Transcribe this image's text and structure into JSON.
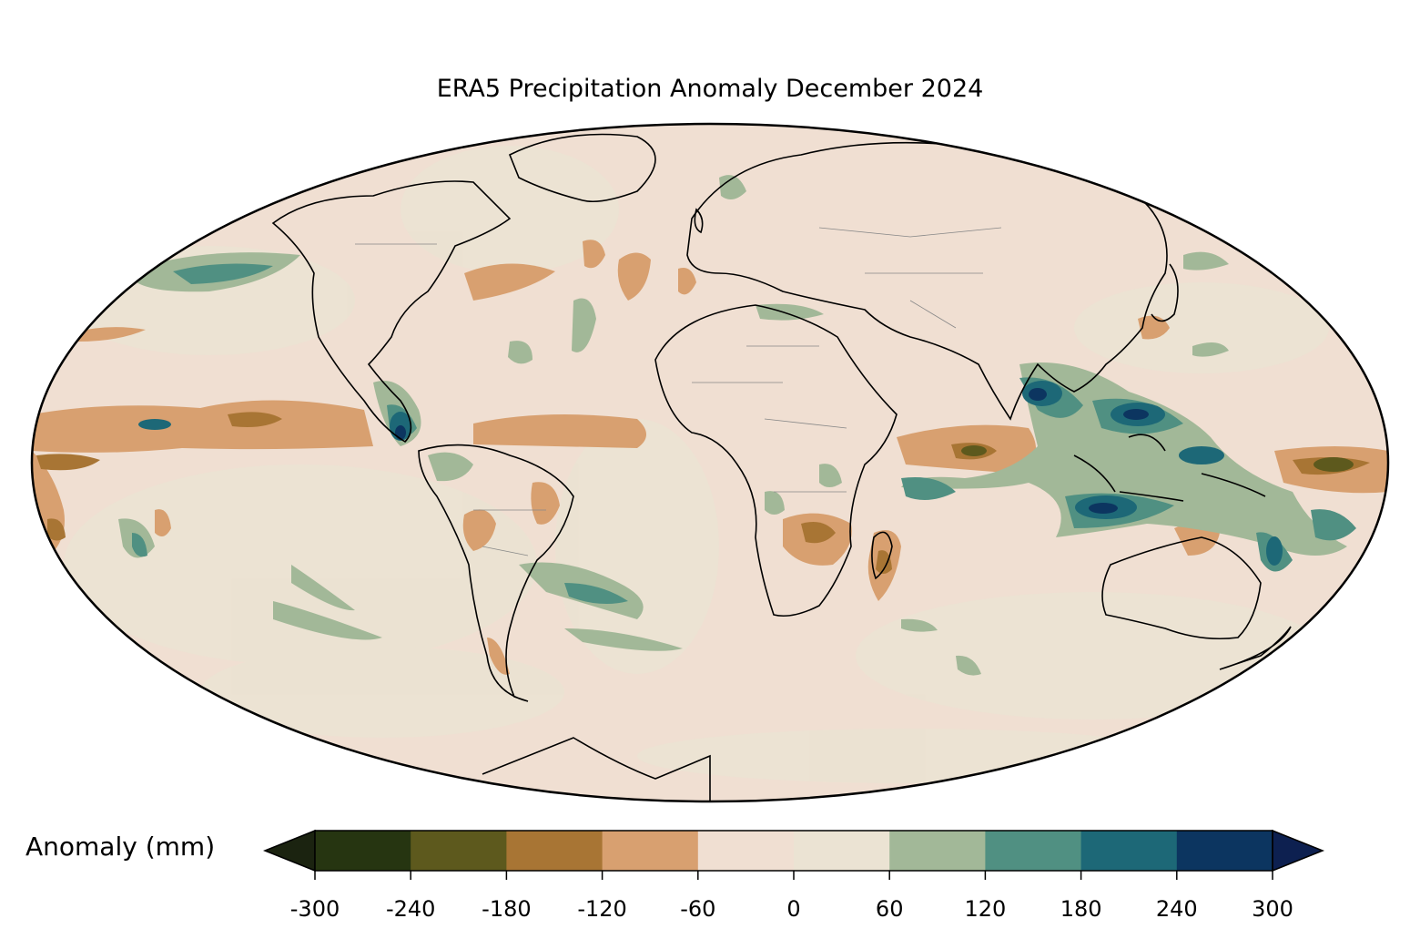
{
  "title": "ERA5 Precipitation Anomaly December 2024",
  "colorbar": {
    "label": "Anomaly (mm)",
    "ticks": [
      "-300",
      "-240",
      "-180",
      "-120",
      "-60",
      "0",
      "60",
      "120",
      "180",
      "240",
      "300"
    ],
    "bins": [
      {
        "from": -300,
        "to": -240,
        "color": "#263511"
      },
      {
        "from": -240,
        "to": -180,
        "color": "#5d591d"
      },
      {
        "from": -180,
        "to": -120,
        "color": "#a87534"
      },
      {
        "from": -120,
        "to": -60,
        "color": "#d8a070"
      },
      {
        "from": -60,
        "to": 0,
        "color": "#f0dfd2"
      },
      {
        "from": 0,
        "to": 60,
        "color": "#ebe3d3"
      },
      {
        "from": 60,
        "to": 120,
        "color": "#a2b898"
      },
      {
        "from": 120,
        "to": 180,
        "color": "#509082"
      },
      {
        "from": 180,
        "to": 240,
        "color": "#1d6877"
      },
      {
        "from": 240,
        "to": 300,
        "color": "#0c3560"
      }
    ],
    "under_color": "#1b2310",
    "over_color": "#0d2050"
  },
  "map": {
    "projection": "Mollweide",
    "background_color": "#f0dfd2",
    "coastline_color": "#000000",
    "border_color": "#888888"
  }
}
